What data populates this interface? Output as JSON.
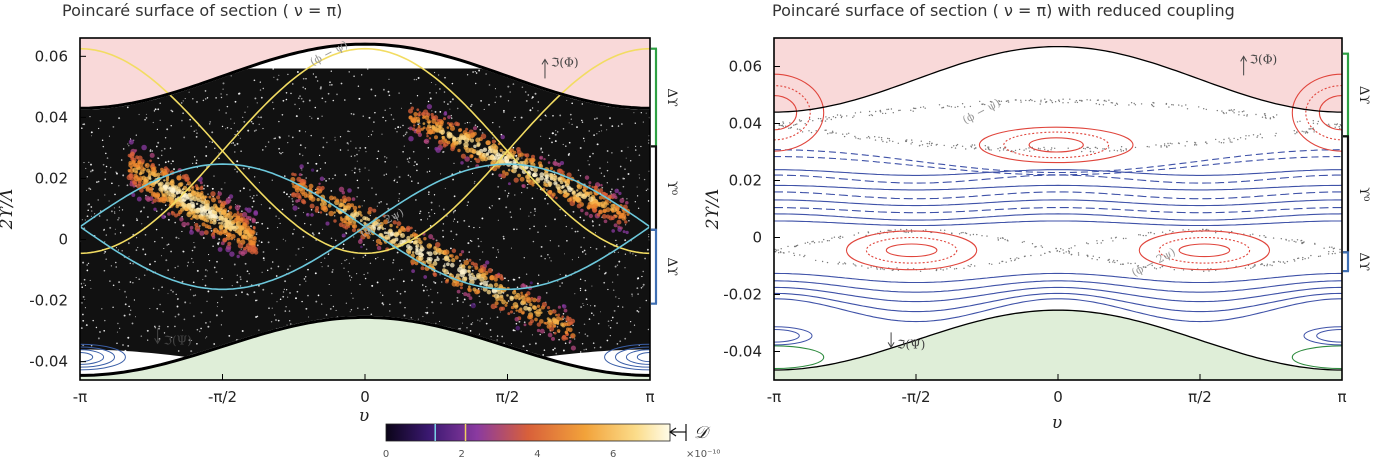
{
  "chart_data": [
    {
      "type": "scatter",
      "title": "Poincaré surface of section ( ν = π)",
      "xlabel": "υ",
      "ylabel": "2ϒ/Λ",
      "xlim": [
        -3.14159,
        3.14159
      ],
      "ylim": [
        -0.046,
        0.066
      ],
      "x_ticks": [
        {
          "v": -3.14159,
          "label": "-π"
        },
        {
          "v": -1.5708,
          "label": "-π/2"
        },
        {
          "v": 0,
          "label": "0"
        },
        {
          "v": 1.5708,
          "label": "π/2"
        },
        {
          "v": 3.14159,
          "label": "π"
        }
      ],
      "y_ticks": [
        {
          "v": 0.06,
          "label": "0.06"
        },
        {
          "v": 0.04,
          "label": "0.04"
        },
        {
          "v": 0.02,
          "label": "0.02"
        },
        {
          "v": 0,
          "label": "0"
        },
        {
          "v": -0.02,
          "label": "-0.02"
        },
        {
          "v": -0.04,
          "label": "-0.04"
        }
      ],
      "upper_boundary": {
        "center": 0.0535,
        "amp": 0.0105
      },
      "lower_boundary": {
        "center": -0.035,
        "amp": 0.0095
      },
      "yellow_curves": [
        {
          "center": 0.029,
          "amp": 0.0335,
          "phase": 0
        },
        {
          "center": 0.029,
          "amp": 0.0335,
          "phase": 3.14159
        }
      ],
      "cyan_curves": [
        {
          "center": 0.0042,
          "amp": 0.0205,
          "phase": -1.5708
        },
        {
          "center": 0.0042,
          "amp": 0.0205,
          "phase": 1.5708
        }
      ],
      "chaotic_band": {
        "center": 0.008,
        "halfwidth": 0.048
      },
      "hot_ridges": [
        {
          "x0": -2.6,
          "y0": 0.024,
          "x1": -1.2,
          "y1": 0.0,
          "w": 0.012
        },
        {
          "x0": -0.8,
          "y0": 0.018,
          "x1": 2.3,
          "y1": -0.03,
          "w": 0.01
        },
        {
          "x0": 0.5,
          "y0": 0.04,
          "x1": 2.9,
          "y1": 0.008,
          "w": 0.009
        }
      ],
      "annotations": [
        {
          "text": "(ϕ − ψ)",
          "x": -0.6,
          "y": 0.058,
          "faint": true
        },
        {
          "text": "(ϕ − 2ψ)",
          "x": -0.05,
          "y": 0.002,
          "faint": true
        },
        {
          "text": "ℑ(Φ)",
          "x": 2.05,
          "y": 0.058,
          "faint": false
        },
        {
          "text": "ℑ(Ψ)",
          "x": -2.22,
          "y": -0.033,
          "faint": false
        }
      ],
      "right_brackets": [
        {
          "label": "Δϒ",
          "y0": 0.0305,
          "y1": 0.0625,
          "color": "#2ea043"
        },
        {
          "label": "ϒ⁰",
          "y0": 0.0032,
          "y1": 0.0305,
          "color": "#111111"
        },
        {
          "label": "Δϒ",
          "y0": -0.021,
          "y1": 0.0032,
          "color": "#3f6fb3"
        }
      ],
      "colorbar": {
        "ticks": [
          {
            "v": 0,
            "label": "0"
          },
          {
            "v": 2,
            "label": "2"
          },
          {
            "v": 4,
            "label": "4"
          },
          {
            "v": 6,
            "label": "6"
          }
        ],
        "max": 7.5,
        "exponent_label": "×10⁻¹⁰",
        "markers": [
          {
            "v": 1.3,
            "color": "#7ad3e8"
          },
          {
            "v": 2.1,
            "color": "#f0d060"
          }
        ],
        "symbol": "𝒟"
      }
    },
    {
      "type": "line",
      "title": "Poincaré surface of section ( ν = π) with reduced coupling",
      "xlabel": "υ",
      "ylabel": "2ϒ/Λ",
      "xlim": [
        -3.14159,
        3.14159
      ],
      "ylim": [
        -0.05,
        0.07
      ],
      "x_ticks": [
        {
          "v": -3.14159,
          "label": "-π"
        },
        {
          "v": -1.5708,
          "label": "-π/2"
        },
        {
          "v": 0,
          "label": "0"
        },
        {
          "v": 1.5708,
          "label": "π/2"
        },
        {
          "v": 3.14159,
          "label": "π"
        }
      ],
      "y_ticks": [
        {
          "v": 0.06,
          "label": "0.06"
        },
        {
          "v": 0.04,
          "label": "0.04"
        },
        {
          "v": 0.02,
          "label": "0.02"
        },
        {
          "v": 0,
          "label": "0"
        },
        {
          "v": -0.02,
          "label": "-0.02"
        },
        {
          "v": -0.04,
          "label": "-0.04"
        }
      ],
      "upper_boundary": {
        "center": 0.0555,
        "amp": 0.0115
      },
      "lower_boundary": {
        "center": -0.036,
        "amp": 0.0105
      },
      "flow_lines": [
        {
          "c": 0.0228,
          "a": 0.001,
          "dash": false
        },
        {
          "c": 0.0205,
          "a": 0.0014,
          "dash": true
        },
        {
          "c": 0.0175,
          "a": 0.0008,
          "dash": false
        },
        {
          "c": 0.0148,
          "a": 0.0012,
          "dash": true
        },
        {
          "c": 0.0122,
          "a": 0.001,
          "dash": false
        },
        {
          "c": 0.0096,
          "a": 0.0009,
          "dash": true
        },
        {
          "c": 0.0072,
          "a": 0.0011,
          "dash": false
        },
        {
          "c": 0.005,
          "a": 0.0008,
          "dash": false
        },
        {
          "c": -0.0142,
          "a": 0.0016,
          "dash": false
        },
        {
          "c": -0.0172,
          "a": 0.002,
          "dash": false
        },
        {
          "c": -0.02,
          "a": 0.0025,
          "dash": false
        },
        {
          "c": -0.0228,
          "a": 0.0032,
          "dash": false
        },
        {
          "c": -0.0255,
          "a": 0.004,
          "dash": false
        }
      ],
      "red_islands": [
        {
          "cx": -3.14159,
          "cy": 0.0438,
          "rx": [
            0.55,
            0.4,
            0.25
          ],
          "ry": [
            0.0135,
            0.0095,
            0.006
          ]
        },
        {
          "cx": 3.14159,
          "cy": 0.0438,
          "rx": [
            0.55,
            0.4,
            0.25
          ],
          "ry": [
            0.0135,
            0.0095,
            0.006
          ]
        },
        {
          "cx": -0.02,
          "cy": 0.0325,
          "rx": [
            0.85,
            0.58,
            0.3
          ],
          "ry": [
            0.0062,
            0.0045,
            0.0025
          ]
        },
        {
          "cx": -1.62,
          "cy": -0.0045,
          "rx": [
            0.72,
            0.5,
            0.28
          ],
          "ry": [
            0.0068,
            0.0045,
            0.0022
          ]
        },
        {
          "cx": 1.62,
          "cy": -0.0045,
          "rx": [
            0.72,
            0.5,
            0.28
          ],
          "ry": [
            0.0068,
            0.0045,
            0.0022
          ]
        }
      ],
      "green_islands": [
        {
          "cx": -3.14159,
          "cy": -0.042,
          "rx": [
            0.55
          ],
          "ry": [
            0.004
          ]
        },
        {
          "cx": 3.14159,
          "cy": -0.042,
          "rx": [
            0.55
          ],
          "ry": [
            0.004
          ]
        }
      ],
      "annotations": [
        {
          "text": "(ϕ − ψ)",
          "x": -1.05,
          "y": 0.041,
          "faint": true
        },
        {
          "text": "(ϕ − 2ψ)",
          "x": 0.82,
          "y": -0.0125,
          "faint": true
        },
        {
          "text": "ℑ(Φ)",
          "x": 2.12,
          "y": 0.0625,
          "faint": false
        },
        {
          "text": "ℑ(Ψ)",
          "x": -1.78,
          "y": -0.0375,
          "faint": false
        }
      ],
      "right_brackets": [
        {
          "label": "Δϒ",
          "y0": 0.0355,
          "y1": 0.0645,
          "color": "#2ea043"
        },
        {
          "label": "ϒ⁰",
          "y0": -0.0052,
          "y1": 0.0355,
          "color": "#111111"
        },
        {
          "label": "Δϒ",
          "y0": -0.0118,
          "y1": -0.0052,
          "color": "#3f6fb3"
        }
      ]
    }
  ]
}
